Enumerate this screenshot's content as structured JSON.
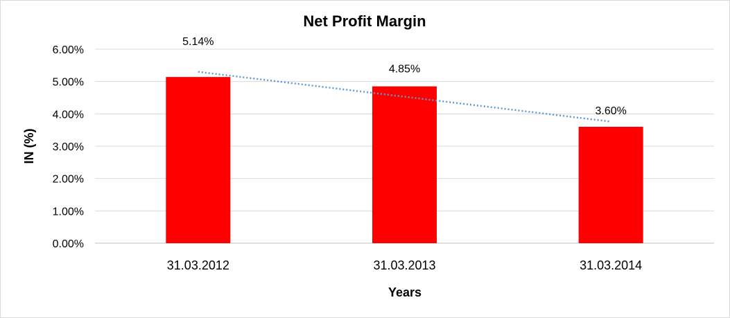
{
  "chart_data": {
    "type": "bar",
    "title": "Net Profit Margin",
    "xlabel": "Years",
    "ylabel": "IN (%)",
    "categories": [
      "31.03.2012",
      "31.03.2013",
      "31.03.2014"
    ],
    "series": [
      {
        "values": [
          5.14,
          4.85,
          3.6
        ],
        "color": "#ff0000",
        "data_labels": [
          "5.14%",
          "4.85%",
          "3.60%"
        ]
      }
    ],
    "ylim": [
      0,
      6
    ],
    "y_ticks": [
      {
        "value": 0,
        "label": "0.00%"
      },
      {
        "value": 1,
        "label": "1.00%"
      },
      {
        "value": 2,
        "label": "2.00%"
      },
      {
        "value": 3,
        "label": "3.00%"
      },
      {
        "value": 4,
        "label": "4.00%"
      },
      {
        "value": 5,
        "label": "5.00%"
      },
      {
        "value": 6,
        "label": "6.00%"
      }
    ],
    "grid": true,
    "legend": "none",
    "trendline": {
      "type": "linear",
      "style": "dotted",
      "color": "#5b9bd5"
    },
    "colors": {
      "grid": "#d9d9d9",
      "axis": "#bfbfbf"
    }
  }
}
